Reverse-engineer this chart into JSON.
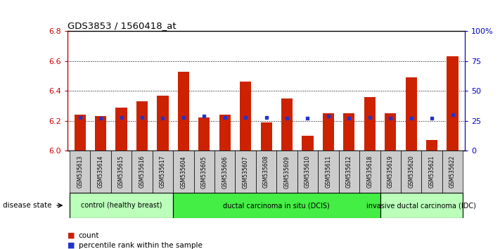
{
  "title": "GDS3853 / 1560418_at",
  "samples": [
    "GSM535613",
    "GSM535614",
    "GSM535615",
    "GSM535616",
    "GSM535617",
    "GSM535604",
    "GSM535605",
    "GSM535606",
    "GSM535607",
    "GSM535608",
    "GSM535609",
    "GSM535610",
    "GSM535611",
    "GSM535612",
    "GSM535618",
    "GSM535619",
    "GSM535620",
    "GSM535621",
    "GSM535622"
  ],
  "count_values": [
    6.24,
    6.23,
    6.29,
    6.33,
    6.37,
    6.53,
    6.22,
    6.24,
    6.46,
    6.19,
    6.35,
    6.1,
    6.25,
    6.25,
    6.36,
    6.25,
    6.49,
    6.07,
    6.63
  ],
  "percentile_values": [
    28,
    27,
    28,
    28,
    27,
    28,
    29,
    28,
    28,
    28,
    27,
    27,
    29,
    27,
    28,
    27,
    27,
    27,
    30
  ],
  "ylim_left": [
    6.0,
    6.8
  ],
  "ylim_right": [
    0,
    100
  ],
  "yticks_left": [
    6.0,
    6.2,
    6.4,
    6.6,
    6.8
  ],
  "yticks_right": [
    0,
    25,
    50,
    75,
    100
  ],
  "ytick_labels_right": [
    "0",
    "25",
    "50",
    "75",
    "100%"
  ],
  "bar_color": "#cc2200",
  "dot_color": "#2233cc",
  "groups": [
    {
      "label": "control (healthy breast)",
      "start": 0,
      "end": 5,
      "color": "#bbffbb"
    },
    {
      "label": "ductal carcinoma in situ (DCIS)",
      "start": 5,
      "end": 15,
      "color": "#44ee44"
    },
    {
      "label": "invasive ductal carcinoma (IDC)",
      "start": 15,
      "end": 19,
      "color": "#bbffbb"
    }
  ],
  "disease_state_label": "disease state",
  "legend_items": [
    {
      "label": "count",
      "color": "#cc2200"
    },
    {
      "label": "percentile rank within the sample",
      "color": "#2233cc"
    }
  ],
  "background_color": "#ffffff",
  "bar_base": 6.0,
  "bar_width": 0.55,
  "tick_color_left": "#cc0000",
  "tick_color_right": "#0000cc",
  "ticklabel_bg": "#cccccc",
  "ticklabel_fontsize": 5.5,
  "group_fontsize": 7.0,
  "legend_fontsize": 7.5
}
